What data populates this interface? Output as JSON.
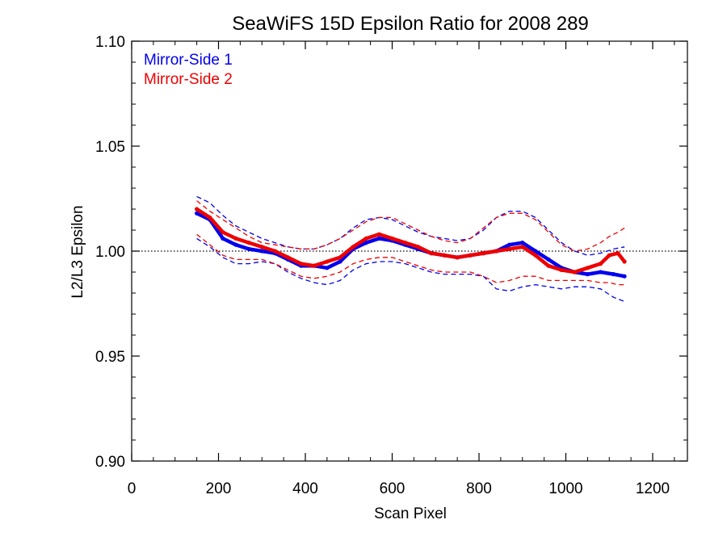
{
  "chart_data": {
    "type": "line",
    "title": "SeaWiFS 15D Epsilon Ratio for 2008 289",
    "xlabel": "Scan Pixel",
    "ylabel": "L2/L3 Epsilon",
    "xlim": [
      0,
      1280
    ],
    "ylim": [
      0.9,
      1.1
    ],
    "xticks": [
      0,
      200,
      400,
      600,
      800,
      1000,
      1200
    ],
    "xtick_labels": [
      "0",
      "200",
      "400",
      "600",
      "800",
      "1000",
      "1200"
    ],
    "yticks": [
      0.9,
      0.95,
      1.0,
      1.05,
      1.1
    ],
    "ytick_labels": [
      "0.90",
      "0.95",
      "1.00",
      "1.05",
      "1.10"
    ],
    "reference_line": 1.0,
    "legend_position": "top-left",
    "colors": {
      "series1": "#0000ee",
      "series2": "#ee0000",
      "reference": "#000000"
    },
    "series": [
      {
        "name": "Mirror-Side 1",
        "x": [
          150,
          180,
          210,
          240,
          270,
          300,
          330,
          360,
          390,
          420,
          450,
          480,
          510,
          540,
          570,
          600,
          630,
          660,
          690,
          720,
          750,
          780,
          810,
          840,
          870,
          900,
          930,
          960,
          990,
          1020,
          1050,
          1080,
          1110,
          1135
        ],
        "y": [
          1.018,
          1.015,
          1.006,
          1.003,
          1.001,
          1.0,
          0.999,
          0.996,
          0.993,
          0.993,
          0.992,
          0.995,
          1.001,
          1.004,
          1.006,
          1.005,
          1.003,
          1.001,
          0.999,
          0.998,
          0.997,
          0.998,
          0.999,
          1.0,
          1.003,
          1.004,
          1.0,
          0.996,
          0.992,
          0.99,
          0.989,
          0.99,
          0.989,
          0.988
        ],
        "upper": [
          1.026,
          1.023,
          1.017,
          1.012,
          1.009,
          1.006,
          1.004,
          1.002,
          1.001,
          1.001,
          1.003,
          1.006,
          1.011,
          1.015,
          1.016,
          1.015,
          1.012,
          1.009,
          1.007,
          1.006,
          1.005,
          1.006,
          1.01,
          1.016,
          1.019,
          1.019,
          1.016,
          1.01,
          1.004,
          1.0,
          0.998,
          0.999,
          1.001,
          1.002
        ],
        "lower": [
          1.006,
          1.002,
          0.997,
          0.994,
          0.994,
          0.995,
          0.994,
          0.99,
          0.987,
          0.985,
          0.984,
          0.986,
          0.991,
          0.994,
          0.995,
          0.995,
          0.994,
          0.992,
          0.99,
          0.989,
          0.989,
          0.989,
          0.988,
          0.982,
          0.981,
          0.983,
          0.984,
          0.983,
          0.982,
          0.983,
          0.983,
          0.982,
          0.978,
          0.976
        ]
      },
      {
        "name": "Mirror-Side 2",
        "x": [
          150,
          180,
          210,
          240,
          270,
          300,
          330,
          360,
          390,
          420,
          450,
          480,
          510,
          540,
          570,
          600,
          630,
          660,
          690,
          720,
          750,
          780,
          810,
          840,
          870,
          900,
          930,
          960,
          990,
          1020,
          1050,
          1080,
          1100,
          1120,
          1135
        ],
        "y": [
          1.02,
          1.016,
          1.009,
          1.006,
          1.004,
          1.002,
          1.0,
          0.997,
          0.994,
          0.993,
          0.995,
          0.997,
          1.002,
          1.006,
          1.008,
          1.006,
          1.004,
          1.002,
          0.999,
          0.998,
          0.997,
          0.998,
          0.999,
          1.0,
          1.001,
          1.002,
          0.998,
          0.993,
          0.991,
          0.99,
          0.992,
          0.994,
          0.998,
          0.999,
          0.995
        ],
        "upper": [
          1.024,
          1.019,
          1.015,
          1.011,
          1.007,
          1.004,
          1.003,
          1.002,
          1.001,
          1.001,
          1.003,
          1.006,
          1.01,
          1.014,
          1.016,
          1.016,
          1.013,
          1.01,
          1.007,
          1.005,
          1.004,
          1.006,
          1.011,
          1.016,
          1.018,
          1.018,
          1.015,
          1.009,
          1.003,
          1.0,
          1.001,
          1.004,
          1.007,
          1.009,
          1.011
        ],
        "lower": [
          1.008,
          1.003,
          0.998,
          0.996,
          0.996,
          0.996,
          0.994,
          0.991,
          0.988,
          0.987,
          0.988,
          0.99,
          0.994,
          0.996,
          0.997,
          0.997,
          0.995,
          0.993,
          0.991,
          0.99,
          0.99,
          0.99,
          0.988,
          0.985,
          0.986,
          0.988,
          0.988,
          0.986,
          0.986,
          0.986,
          0.986,
          0.985,
          0.985,
          0.984,
          0.984
        ]
      }
    ]
  }
}
